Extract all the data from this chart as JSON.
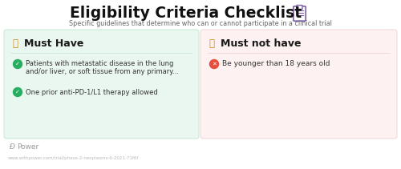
{
  "title": "Eligibility Criteria Checklist",
  "subtitle": "Specific guidelines that determine who can or cannot participate in a clinical trial",
  "bg_color": "#ffffff",
  "title_color": "#111111",
  "subtitle_color": "#666666",
  "title_fontsize": 13.5,
  "subtitle_fontsize": 5.8,
  "left_box": {
    "bg_color": "#eaf7f0",
    "border_color": "#c5e8d5",
    "header_text": "Must Have",
    "header_color": "#1a1a1a",
    "header_icon_color": "#d4860a",
    "items": [
      {
        "icon_color": "#27ae60",
        "text_line1": "Patients with metastatic disease in the lung",
        "text_line2": "and/or liver, or soft tissue from any primary..."
      },
      {
        "icon_color": "#27ae60",
        "text_line1": "One prior anti-PD-1/L1 therapy allowed",
        "text_line2": ""
      }
    ],
    "item_color": "#333333"
  },
  "right_box": {
    "bg_color": "#fdf1f1",
    "border_color": "#f0d5d5",
    "header_text": "Must not have",
    "header_color": "#1a1a1a",
    "header_icon_color": "#d4860a",
    "items": [
      {
        "icon_color": "#e74c3c",
        "text_line1": "Be younger than 18 years old",
        "text_line2": ""
      }
    ],
    "item_color": "#333333"
  },
  "footer_logo_color": "#999999",
  "footer_url": "www.withpower.com/trial/phase-2-neoplasms-6-2021-71f6f",
  "footer_url_color": "#bbbbbb"
}
